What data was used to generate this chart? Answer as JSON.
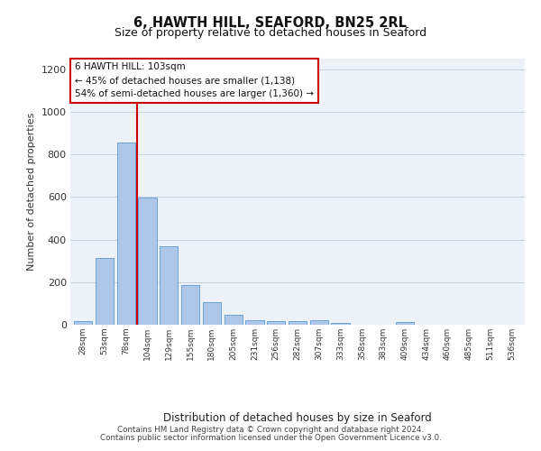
{
  "title1": "6, HAWTH HILL, SEAFORD, BN25 2RL",
  "title2": "Size of property relative to detached houses in Seaford",
  "xlabel": "Distribution of detached houses by size in Seaford",
  "ylabel": "Number of detached properties",
  "categories": [
    "28sqm",
    "53sqm",
    "78sqm",
    "104sqm",
    "129sqm",
    "155sqm",
    "180sqm",
    "205sqm",
    "231sqm",
    "256sqm",
    "282sqm",
    "307sqm",
    "333sqm",
    "358sqm",
    "383sqm",
    "409sqm",
    "434sqm",
    "460sqm",
    "485sqm",
    "511sqm",
    "536sqm"
  ],
  "values": [
    18,
    315,
    855,
    598,
    370,
    185,
    105,
    48,
    22,
    18,
    18,
    20,
    8,
    0,
    0,
    12,
    0,
    0,
    0,
    0,
    0
  ],
  "bar_color": "#aec6e8",
  "bar_edge_color": "#5b9bd5",
  "bg_color": "#edf1f8",
  "annotation_line1": "6 HAWTH HILL: 103sqm",
  "annotation_line2": "← 45% of detached houses are smaller (1,138)",
  "annotation_line3": "54% of semi-detached houses are larger (1,360) →",
  "annotation_box_color": "#ffffff",
  "annotation_box_edge": "#cc0000",
  "vline_color": "#cc0000",
  "vline_xindex": 2.5,
  "ylim": [
    0,
    1250
  ],
  "yticks": [
    0,
    200,
    400,
    600,
    800,
    1000,
    1200
  ],
  "footer1": "Contains HM Land Registry data © Crown copyright and database right 2024.",
  "footer2": "Contains public sector information licensed under the Open Government Licence v3.0.",
  "grid_color": "#c8d0dc"
}
